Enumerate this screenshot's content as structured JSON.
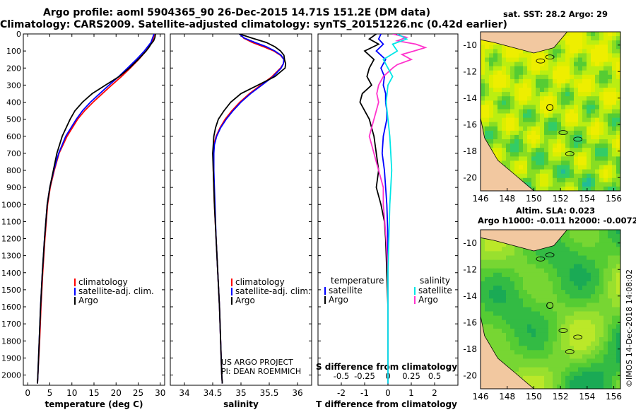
{
  "header": {
    "title_line1": "Argo profile: aoml 5904365_90 26-Dec-2015 14.71S 151.2E (DM data)",
    "title_line2": "Climatology: CARS2009. Satellite-adjusted climatology: synTS_20151226.nc (0.42d earlier)"
  },
  "colors": {
    "climatology": "#ff0000",
    "satellite": "#0000ff",
    "argo": "#000000",
    "s_satellite": "#00e6e6",
    "s_argo": "#ff33cc"
  },
  "chart_data": [
    {
      "id": "temperature",
      "type": "line",
      "xlabel": "temperature (deg C)",
      "ylabel": "",
      "xlim": [
        -1,
        31
      ],
      "ylim": [
        2060,
        0
      ],
      "x_ticks": [
        "0",
        "5",
        "10",
        "15",
        "20",
        "25",
        "30"
      ],
      "x_tick_values": [
        0,
        5,
        10,
        15,
        20,
        25,
        30
      ],
      "y_tick_values": [
        0,
        100,
        200,
        300,
        400,
        500,
        600,
        700,
        800,
        900,
        1000,
        1100,
        1200,
        1300,
        1400,
        1500,
        1600,
        1700,
        1800,
        1900,
        2000
      ],
      "series": [
        {
          "name": "climatology",
          "depth": [
            0,
            50,
            100,
            150,
            200,
            250,
            300,
            350,
            400,
            450,
            500,
            600,
            700,
            800,
            900,
            1000,
            1200,
            1400,
            1600,
            1800,
            2000,
            2050
          ],
          "values": [
            28.7,
            28.1,
            26.8,
            25.1,
            23.2,
            21.2,
            19.0,
            16.9,
            14.8,
            12.9,
            11.3,
            8.9,
            7.1,
            6.0,
            5.1,
            4.5,
            3.9,
            3.4,
            3.0,
            2.7,
            2.3,
            2.2
          ]
        },
        {
          "name": "satellite-adj. clim.",
          "depth": [
            0,
            50,
            100,
            150,
            200,
            250,
            300,
            350,
            400,
            450,
            500,
            600,
            700,
            800,
            900,
            1000,
            1200,
            1400,
            1600,
            1800,
            2000,
            2050
          ],
          "values": [
            28.6,
            27.9,
            26.4,
            24.6,
            22.6,
            20.6,
            18.4,
            16.3,
            14.2,
            12.4,
            11.0,
            8.6,
            7.0,
            5.9,
            5.0,
            4.4,
            3.8,
            3.3,
            2.9,
            2.6,
            2.3,
            2.2
          ]
        },
        {
          "name": "Argo",
          "depth": [
            0,
            20,
            40,
            60,
            80,
            100,
            150,
            200,
            250,
            300,
            350,
            400,
            450,
            500,
            600,
            700,
            800,
            900,
            1000,
            1200,
            1400,
            1600,
            1800,
            2000,
            2050
          ],
          "values": [
            28.9,
            28.8,
            28.5,
            27.9,
            27.4,
            26.8,
            25.0,
            23.0,
            20.7,
            17.6,
            14.6,
            12.4,
            10.7,
            9.6,
            7.8,
            6.6,
            5.8,
            5.0,
            4.4,
            3.8,
            3.3,
            2.9,
            2.6,
            2.3,
            2.2
          ]
        }
      ],
      "legend": [
        "climatology",
        "satellite-adj. clim.",
        "Argo"
      ],
      "legend_position": "bottom-right"
    },
    {
      "id": "salinity",
      "type": "line",
      "xlabel": "salinity",
      "xlim": [
        33.75,
        36.25
      ],
      "ylim": [
        2060,
        0
      ],
      "x_ticks": [
        "34",
        "34.5",
        "35",
        "35.5",
        "36"
      ],
      "x_tick_values": [
        34,
        34.5,
        35,
        35.5,
        36
      ],
      "series": [
        {
          "name": "climatology",
          "depth": [
            0,
            25,
            50,
            75,
            100,
            125,
            150,
            175,
            200,
            250,
            300,
            350,
            400,
            450,
            500,
            550,
            600,
            650,
            700,
            800,
            900,
            1000,
            1200,
            1400,
            1600,
            1800,
            2000,
            2050
          ],
          "values": [
            34.98,
            35.05,
            35.2,
            35.4,
            35.58,
            35.7,
            35.76,
            35.75,
            35.7,
            35.55,
            35.35,
            35.15,
            34.98,
            34.84,
            34.72,
            34.63,
            34.56,
            34.52,
            34.51,
            34.51,
            34.52,
            34.53,
            34.56,
            34.59,
            34.62,
            34.64,
            34.66,
            34.67
          ]
        },
        {
          "name": "satellite-adj. clim.",
          "depth": [
            0,
            25,
            50,
            75,
            100,
            125,
            150,
            175,
            200,
            250,
            300,
            350,
            400,
            450,
            500,
            550,
            600,
            650,
            700,
            800,
            900,
            1000,
            1200,
            1400,
            1600,
            1800,
            2000,
            2050
          ],
          "values": [
            34.97,
            35.06,
            35.25,
            35.45,
            35.6,
            35.71,
            35.76,
            35.75,
            35.71,
            35.57,
            35.37,
            35.17,
            35.0,
            34.86,
            34.74,
            34.64,
            34.57,
            34.53,
            34.52,
            34.52,
            34.53,
            34.54,
            34.56,
            34.59,
            34.62,
            34.64,
            34.66,
            34.67
          ]
        },
        {
          "name": "Argo",
          "depth": [
            0,
            25,
            50,
            75,
            100,
            125,
            150,
            175,
            200,
            250,
            300,
            350,
            400,
            450,
            500,
            550,
            600,
            650,
            700,
            800,
            900,
            1000,
            1200,
            1400,
            1600,
            1800,
            2000,
            2050
          ],
          "values": [
            34.97,
            35.2,
            35.45,
            35.6,
            35.7,
            35.76,
            35.77,
            35.79,
            35.78,
            35.6,
            35.3,
            35.0,
            34.82,
            34.7,
            34.6,
            34.55,
            34.52,
            34.51,
            34.5,
            34.51,
            34.52,
            34.53,
            34.56,
            34.59,
            34.62,
            34.64,
            34.66,
            34.67
          ]
        }
      ],
      "legend": [
        "climatology",
        "satellite-adj. clim.",
        "Argo"
      ],
      "legend_position": "bottom-right",
      "annotation": [
        "US ARGO PROJECT",
        "PI: DEAN ROEMMICH"
      ]
    },
    {
      "id": "difference",
      "type": "line",
      "xlabel": "T difference from climatology",
      "top_label": "S difference from climatology",
      "xlim": [
        -3,
        3
      ],
      "ylim": [
        2060,
        0
      ],
      "x_ticks": [
        "-2",
        "-1",
        "0",
        "1",
        "2"
      ],
      "x_tick_values": [
        -2,
        -1,
        0,
        1,
        2
      ],
      "s_ticks": [
        "-0.5",
        "-0.25",
        "0",
        "0.25",
        "0.5"
      ],
      "s_tick_values": [
        -0.5,
        -0.25,
        0,
        0.25,
        0.5
      ],
      "series": [
        {
          "name": "temperature satellite",
          "depth": [
            0,
            30,
            60,
            100,
            150,
            200,
            250,
            300,
            350,
            400,
            450,
            500,
            600,
            700,
            800,
            900,
            1000,
            1200,
            1400,
            1600,
            1800,
            2000,
            2050
          ],
          "values": [
            -0.3,
            -0.4,
            -0.2,
            -0.5,
            -0.1,
            -0.3,
            -0.15,
            -0.2,
            -0.1,
            -0.1,
            -0.05,
            -0.05,
            -0.2,
            -0.25,
            -0.15,
            -0.1,
            -0.05,
            0.0,
            0.0,
            0.0,
            0.0,
            0.0,
            0.0
          ]
        },
        {
          "name": "temperature Argo",
          "depth": [
            0,
            30,
            60,
            100,
            150,
            200,
            250,
            300,
            350,
            400,
            450,
            500,
            600,
            700,
            800,
            900,
            1000,
            1100,
            1200,
            1400,
            1600,
            1800,
            2000,
            2050
          ],
          "values": [
            -0.5,
            -0.8,
            -0.4,
            -1.0,
            -0.6,
            -0.8,
            -0.9,
            -0.7,
            -1.1,
            -1.2,
            -1.0,
            -0.8,
            -0.6,
            -0.5,
            -0.4,
            -0.5,
            -0.3,
            -0.15,
            -0.1,
            -0.05,
            0.0,
            0.0,
            0.0,
            0.0
          ]
        },
        {
          "name": "salinity satellite",
          "depth": [
            0,
            30,
            60,
            100,
            150,
            200,
            250,
            300,
            400,
            500,
            600,
            700,
            800,
            900,
            1000,
            1200,
            1400,
            1600,
            1800,
            2000,
            2050
          ],
          "values": [
            0.1,
            0.2,
            0.05,
            0.1,
            -0.05,
            0.0,
            0.05,
            0.0,
            -0.02,
            0.0,
            0.02,
            0.03,
            0.04,
            0.03,
            0.02,
            0.01,
            0.0,
            0.0,
            0.0,
            0.0,
            0.0
          ]
        },
        {
          "name": "salinity Argo",
          "depth": [
            0,
            20,
            40,
            60,
            80,
            100,
            120,
            150,
            180,
            200,
            250,
            300,
            350,
            400,
            500,
            600,
            700,
            800,
            900,
            1000,
            1200,
            1400,
            1600,
            1800,
            2000,
            2050
          ],
          "values": [
            0.05,
            0.2,
            0.1,
            0.3,
            0.4,
            0.28,
            0.15,
            0.25,
            0.1,
            0.05,
            -0.05,
            -0.1,
            -0.12,
            -0.1,
            -0.15,
            -0.2,
            -0.15,
            -0.1,
            -0.05,
            -0.05,
            -0.02,
            0.0,
            0.0,
            0.0,
            0.0,
            0.0
          ]
        }
      ],
      "legend_temperature": {
        "heading": "temperature",
        "items": [
          "satellite",
          "Argo"
        ]
      },
      "legend_salinity": {
        "heading": "salinity",
        "items": [
          "satellite",
          "Argo"
        ]
      }
    },
    {
      "id": "sst_map",
      "type": "heatmap",
      "title": "sat. SST: 28.2 Argo: 29",
      "xlim": [
        146,
        156.5
      ],
      "ylim": [
        -21,
        -9
      ],
      "x_ticks": [
        "146",
        "148",
        "150",
        "152",
        "154",
        "156"
      ],
      "x_tick_values": [
        146,
        148,
        150,
        152,
        154,
        156
      ],
      "y_ticks": [
        "-10",
        "-12",
        "-14",
        "-16",
        "-18",
        "-20"
      ],
      "y_tick_values": [
        -10,
        -12,
        -14,
        -16,
        -18,
        -20
      ],
      "profile_location": {
        "lon": 151.2,
        "lat": -14.71
      }
    },
    {
      "id": "sla_map",
      "type": "heatmap",
      "title": "Altim. SLA: 0.023",
      "subtitle": "Argo h1000: -0.011 h2000: -0.0072",
      "xlim": [
        146,
        156.5
      ],
      "ylim": [
        -21,
        -9
      ],
      "x_ticks": [
        "146",
        "148",
        "150",
        "152",
        "154",
        "156"
      ],
      "x_tick_values": [
        146,
        148,
        150,
        152,
        154,
        156
      ],
      "y_ticks": [
        "-10",
        "-12",
        "-14",
        "-16",
        "-18",
        "-20"
      ],
      "y_tick_values": [
        -10,
        -12,
        -14,
        -16,
        -18,
        -20
      ],
      "profile_location": {
        "lon": 151.2,
        "lat": -14.71
      }
    }
  ],
  "footer": {
    "stamp": "©IMOS 14-Dec-2018 14:08:02"
  }
}
